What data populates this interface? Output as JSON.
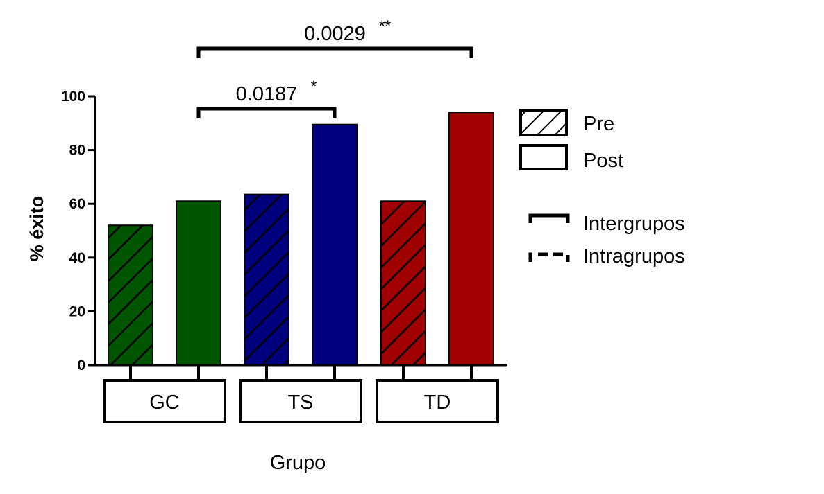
{
  "chart_data": {
    "type": "bar",
    "xlabel": "Grupo",
    "ylabel": "% éxito",
    "ylim": [
      0,
      100
    ],
    "yticks": [
      "0",
      "20",
      "40",
      "60",
      "80",
      "100"
    ],
    "categories": [
      "GC",
      "TS",
      "TD"
    ],
    "series": [
      {
        "name": "Pre",
        "values": [
          52,
          63.5,
          61
        ],
        "pattern": "hatched"
      },
      {
        "name": "Post",
        "values": [
          61,
          89.5,
          94
        ],
        "pattern": "solid"
      }
    ],
    "group_colors": [
      "#005500",
      "#00007f",
      "#a00000"
    ],
    "comparisons": [
      {
        "from": "GC Post",
        "to": "TS Post",
        "p_value": "0.0187",
        "stars": "*",
        "style": "Intergrupos"
      },
      {
        "from": "GC Post",
        "to": "TD Post",
        "p_value": "0.0029",
        "stars": "**",
        "style": "Intergrupos"
      }
    ],
    "legend": {
      "series": [
        "Pre",
        "Post"
      ],
      "lines": [
        "Intergrupos",
        "Intragrupos"
      ],
      "placement": "right"
    }
  }
}
